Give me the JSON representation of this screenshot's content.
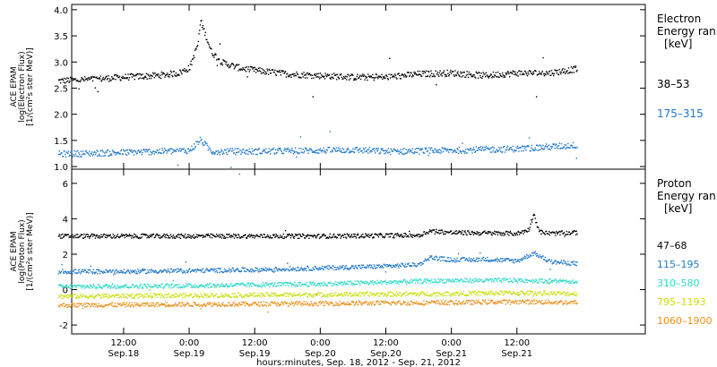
{
  "chart_data": [
    {
      "type": "scatter",
      "panel": "electron",
      "ylabel_lines": [
        "ACE EPAM",
        "log(Electron Flux)",
        "[1/(cm²s ster MeV)]"
      ],
      "ylim": [
        0.95,
        4.1
      ],
      "yticks": [
        1.0,
        1.5,
        2.0,
        2.5,
        3.0,
        3.5,
        4.0
      ],
      "ytick_labels": [
        "1.0",
        "1.5",
        "2.0",
        "2.5",
        "3.0",
        "3.5",
        "4.0"
      ],
      "legend_title_lines": [
        "Electron",
        "Energy ran",
        "[keV]"
      ],
      "series": [
        {
          "name": "38–53",
          "color": "#000000",
          "points": [
            [
              0,
              2.65
            ],
            [
              6,
              2.68
            ],
            [
              12,
              2.72
            ],
            [
              18,
              2.75
            ],
            [
              22,
              2.8
            ],
            [
              24,
              2.9
            ],
            [
              25.5,
              3.35
            ],
            [
              26,
              3.8
            ],
            [
              27,
              3.5
            ],
            [
              28,
              3.2
            ],
            [
              30,
              3.0
            ],
            [
              33,
              2.9
            ],
            [
              36,
              2.85
            ],
            [
              42,
              2.78
            ],
            [
              48,
              2.75
            ],
            [
              54,
              2.72
            ],
            [
              60,
              2.72
            ],
            [
              66,
              2.78
            ],
            [
              72,
              2.8
            ],
            [
              78,
              2.75
            ],
            [
              84,
              2.8
            ],
            [
              90,
              2.8
            ],
            [
              95,
              2.88
            ]
          ]
        },
        {
          "name": "175–315",
          "color": "#1f77c8",
          "points": [
            [
              0,
              1.25
            ],
            [
              12,
              1.28
            ],
            [
              24,
              1.32
            ],
            [
              26,
              1.52
            ],
            [
              28,
              1.3
            ],
            [
              36,
              1.3
            ],
            [
              48,
              1.32
            ],
            [
              54,
              1.33
            ],
            [
              60,
              1.3
            ],
            [
              72,
              1.32
            ],
            [
              84,
              1.35
            ],
            [
              95,
              1.42
            ]
          ]
        }
      ]
    },
    {
      "type": "scatter",
      "panel": "proton",
      "ylabel_lines": [
        "ACE EPAM",
        "log(Proton Flux)",
        "[1/(cm²s ster MeV)]"
      ],
      "ylim": [
        -2.5,
        6.8
      ],
      "yticks": [
        -2,
        0,
        2,
        4,
        6
      ],
      "ytick_labels": [
        "-2",
        "0",
        "2",
        "4",
        "6"
      ],
      "legend_title_lines": [
        "Proton",
        "Energy ran",
        "[keV]"
      ],
      "series": [
        {
          "name": "47–68",
          "color": "#000000",
          "points": [
            [
              0,
              3.05
            ],
            [
              24,
              3.05
            ],
            [
              48,
              3.05
            ],
            [
              66,
              3.1
            ],
            [
              68,
              3.35
            ],
            [
              72,
              3.25
            ],
            [
              84,
              3.2
            ],
            [
              86,
              3.4
            ],
            [
              87,
              4.3
            ],
            [
              88,
              3.3
            ],
            [
              90,
              3.2
            ],
            [
              95,
              3.25
            ]
          ]
        },
        {
          "name": "115–195",
          "color": "#1f77c8",
          "points": [
            [
              0,
              1.05
            ],
            [
              12,
              1.05
            ],
            [
              24,
              1.1
            ],
            [
              36,
              1.15
            ],
            [
              48,
              1.25
            ],
            [
              60,
              1.35
            ],
            [
              66,
              1.45
            ],
            [
              68,
              1.85
            ],
            [
              72,
              1.7
            ],
            [
              78,
              1.75
            ],
            [
              84,
              1.65
            ],
            [
              87,
              2.1
            ],
            [
              90,
              1.6
            ],
            [
              95,
              1.5
            ]
          ]
        },
        {
          "name": "310–580",
          "color": "#2ed8c8",
          "points": [
            [
              0,
              0.2
            ],
            [
              24,
              0.25
            ],
            [
              48,
              0.35
            ],
            [
              60,
              0.45
            ],
            [
              72,
              0.55
            ],
            [
              84,
              0.55
            ],
            [
              95,
              0.5
            ]
          ]
        },
        {
          "name": "795–1193",
          "color": "#c8e010",
          "points": [
            [
              0,
              -0.35
            ],
            [
              24,
              -0.3
            ],
            [
              48,
              -0.25
            ],
            [
              72,
              -0.2
            ],
            [
              84,
              -0.15
            ],
            [
              95,
              -0.2
            ]
          ]
        },
        {
          "name": "1060–1900",
          "color": "#e8901a",
          "points": [
            [
              0,
              -0.85
            ],
            [
              24,
              -0.8
            ],
            [
              48,
              -0.75
            ],
            [
              72,
              -0.7
            ],
            [
              84,
              -0.65
            ],
            [
              95,
              -0.7
            ]
          ]
        }
      ]
    }
  ],
  "x_axis": {
    "label": "hours:minutes, Sep. 18, 2012 - Sep. 21, 2012",
    "range_hours_since_sep18": [
      2.5,
      107.5
    ],
    "ticks": [
      {
        "h": 12,
        "top": "12:00",
        "bottom": "Sep.18"
      },
      {
        "h": 24,
        "top": "0:00",
        "bottom": "Sep.19"
      },
      {
        "h": 36,
        "top": "12:00",
        "bottom": "Sep.19"
      },
      {
        "h": 48,
        "top": "0:00",
        "bottom": "Sep.20"
      },
      {
        "h": 60,
        "top": "12:00",
        "bottom": "Sep.20"
      },
      {
        "h": 72,
        "top": "0:00",
        "bottom": "Sep.21"
      },
      {
        "h": 84,
        "top": "12:00",
        "bottom": "Sep.21"
      }
    ]
  }
}
